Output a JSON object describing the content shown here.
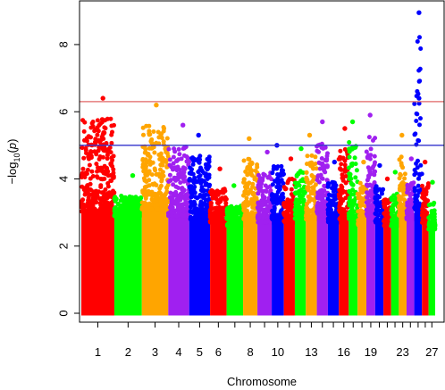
{
  "chart_data": {
    "type": "scatter",
    "subtype": "manhattan",
    "title": "",
    "xlabel": "Chromosome",
    "ylabel": "−log10(p)",
    "ylabel_parts": [
      "−log",
      "10",
      "(",
      "p",
      ")"
    ],
    "ylim": [
      0,
      9.3
    ],
    "yticks": [
      0,
      2,
      4,
      6,
      8
    ],
    "xtick_labels": [
      "1",
      "2",
      "3",
      "4",
      "5",
      "6",
      "8",
      "10",
      "13",
      "16",
      "19",
      "23",
      "27"
    ],
    "chromosome_colors": [
      "#ff0000",
      "#00ff00",
      "#ffa500",
      "#a020f0",
      "#0000ff"
    ],
    "thresholds": [
      {
        "value": 6.3,
        "color": "#e06666"
      },
      {
        "value": 5.0,
        "color": "#3333cc"
      }
    ],
    "grid": false,
    "legend": "none",
    "chromosomes": [
      {
        "chr": "1",
        "peak": 6.4,
        "dense_top": 3.0
      },
      {
        "chr": "2",
        "peak": 4.1,
        "dense_top": 2.9
      },
      {
        "chr": "3",
        "peak": 6.2,
        "dense_top": 3.1
      },
      {
        "chr": "4",
        "peak": 5.6,
        "dense_top": 2.9
      },
      {
        "chr": "5",
        "peak": 5.3,
        "dense_top": 2.8
      },
      {
        "chr": "6",
        "peak": 4.3,
        "dense_top": 2.7
      },
      {
        "chr": "7",
        "peak": 3.8,
        "dense_top": 2.6
      },
      {
        "chr": "8",
        "peak": 5.2,
        "dense_top": 2.8
      },
      {
        "chr": "9",
        "peak": 4.8,
        "dense_top": 2.7
      },
      {
        "chr": "10",
        "peak": 5.0,
        "dense_top": 2.8
      },
      {
        "chr": "11",
        "peak": 4.6,
        "dense_top": 2.7
      },
      {
        "chr": "12",
        "peak": 4.9,
        "dense_top": 2.8
      },
      {
        "chr": "13",
        "peak": 5.3,
        "dense_top": 2.8
      },
      {
        "chr": "14",
        "peak": 5.7,
        "dense_top": 2.9
      },
      {
        "chr": "15",
        "peak": 4.5,
        "dense_top": 2.7
      },
      {
        "chr": "16",
        "peak": 5.5,
        "dense_top": 2.8
      },
      {
        "chr": "17",
        "peak": 5.7,
        "dense_top": 2.8
      },
      {
        "chr": "18",
        "peak": 4.5,
        "dense_top": 2.6
      },
      {
        "chr": "19",
        "peak": 5.9,
        "dense_top": 2.9
      },
      {
        "chr": "20",
        "peak": 4.4,
        "dense_top": 2.7
      },
      {
        "chr": "21",
        "peak": 4.0,
        "dense_top": 2.6
      },
      {
        "chr": "22",
        "peak": 4.2,
        "dense_top": 2.6
      },
      {
        "chr": "23",
        "peak": 5.3,
        "dense_top": 2.9
      },
      {
        "chr": "24",
        "peak": 4.6,
        "dense_top": 2.8
      },
      {
        "chr": "25",
        "peak": 8.95,
        "second_peak": 6.4,
        "dense_top": 3.0
      },
      {
        "chr": "26",
        "peak": 4.5,
        "dense_top": 2.7
      },
      {
        "chr": "27",
        "peak": 3.9,
        "dense_top": 2.5
      }
    ]
  }
}
